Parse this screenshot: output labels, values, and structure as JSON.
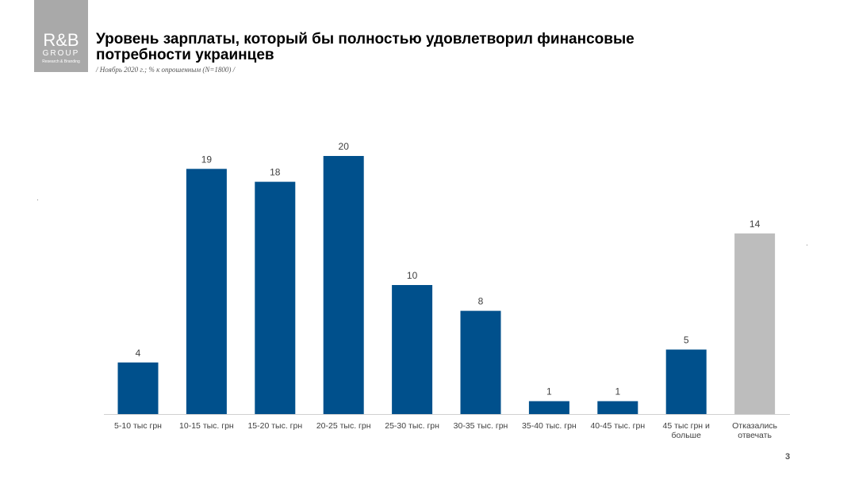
{
  "logo": {
    "main": "R&B",
    "sub": "GROUP",
    "tagline": "Research & Branding"
  },
  "title": "Уровень зарплаты, который бы полностью удовлетворил финансовые потребности украинцев",
  "subtitle": "/ Ноябрь 2020 г.; % к опрошенным (N=1800) /",
  "page_number": "3",
  "colors": {
    "primary_bar": "#00508c",
    "refused_bar": "#bdbdbd",
    "axis": "#d0d0d0",
    "label": "#404040"
  },
  "chart_data": {
    "type": "bar",
    "categories": [
      "5-10 тыс грн",
      "10-15 тыс. грн",
      "15-20 тыс. грн",
      "20-25 тыс. грн",
      "25-30 тыс. грн",
      "30-35 тыс. грн",
      "35-40 тыс. грн",
      "40-45 тыс. грн",
      "45 тыс грн и больше",
      "Отказались отвечать"
    ],
    "values": [
      4,
      19,
      18,
      20,
      10,
      8,
      1,
      1,
      5,
      14
    ],
    "bar_colors": [
      "primary",
      "primary",
      "primary",
      "primary",
      "primary",
      "primary",
      "primary",
      "primary",
      "primary",
      "refused"
    ],
    "title": "Уровень зарплаты, который бы полностью удовлетворил финансовые потребности украинцев",
    "xlabel": "",
    "ylabel": "",
    "ylim": [
      0,
      20
    ],
    "grid": false,
    "legend": "none",
    "data_labels": true
  }
}
